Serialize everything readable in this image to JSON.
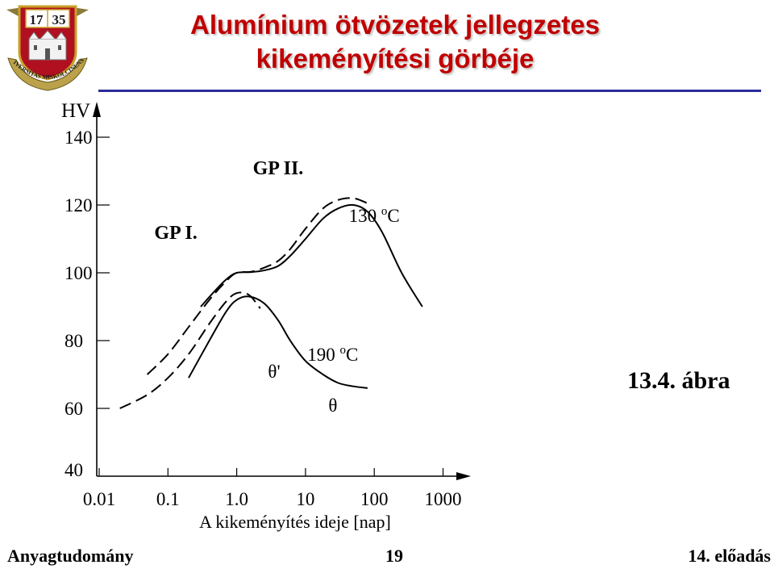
{
  "slide": {
    "title_line1": "Alumínium ötvözetek jellegzetes",
    "title_line2": "kikeményítési görbéje",
    "figure_label": "13.4. ábra",
    "footer_left": "Anyagtudomány",
    "footer_page": "19",
    "footer_right": "14. előadás"
  },
  "logo": {
    "year_left": "17",
    "year_right": "35",
    "ring_text": "UNIVERSITAS MISKOLCINENSIS",
    "colors": {
      "shield": "#b01020",
      "gold": "#c9a227"
    }
  },
  "chart_data": {
    "type": "line",
    "ylabel": "HV",
    "xlabel": "A kikeményítés ideje [nap]",
    "x_scale": "log",
    "xlim": [
      0.01,
      1000
    ],
    "ylim": [
      40,
      140
    ],
    "x_ticks": [
      0.01,
      0.1,
      1.0,
      10,
      100,
      1000
    ],
    "x_tick_labels": [
      "0.01",
      "0.1",
      "1.0",
      "10",
      "100",
      "1000"
    ],
    "y_ticks": [
      40,
      60,
      80,
      100,
      120,
      140
    ],
    "y_tick_labels": [
      "40",
      "60",
      "80",
      "100",
      "120",
      "140"
    ],
    "series": [
      {
        "name": "130 oC",
        "style": "solid",
        "x": [
          0.3,
          0.45,
          0.7,
          1.0,
          1.6,
          2.5,
          4,
          6,
          10,
          18,
          30,
          50,
          80,
          130,
          250,
          500
        ],
        "y": [
          90,
          94,
          98,
          100,
          100.2,
          100.7,
          102,
          105,
          110,
          116,
          119,
          120,
          118,
          112,
          100,
          90
        ]
      },
      {
        "name": "GP II.",
        "style": "dashed",
        "x": [
          0.05,
          0.1,
          0.2,
          0.4,
          0.7,
          1.0,
          1.6,
          2.5,
          4,
          6,
          10,
          18,
          30,
          50,
          80
        ],
        "y": [
          70,
          76,
          84,
          92,
          97.5,
          100,
          100.3,
          101.5,
          103.5,
          107,
          113,
          119,
          121.5,
          122,
          120.5
        ]
      },
      {
        "name": "190 oC",
        "style": "solid",
        "x": [
          0.2,
          0.4,
          0.7,
          1.0,
          1.5,
          2.5,
          4,
          6,
          10,
          18,
          30,
          50,
          80
        ],
        "y": [
          69,
          80,
          88.5,
          92,
          93,
          91,
          86,
          80,
          74,
          70,
          67.5,
          66.5,
          66
        ]
      },
      {
        "name": "GP I.",
        "style": "dashed",
        "x": [
          0.02,
          0.05,
          0.1,
          0.2,
          0.4,
          0.7,
          1.0,
          1.5,
          2.2
        ],
        "y": [
          60,
          64,
          69,
          76,
          85,
          91.5,
          94,
          93.5,
          89.5
        ]
      }
    ],
    "annotations": [
      {
        "text": "GP II.",
        "x": 4.0,
        "y": 129
      },
      {
        "text": "GP I.",
        "x": 0.13,
        "y": 110
      },
      {
        "text": "130 oC",
        "x": 100,
        "y": 115
      },
      {
        "text": "190 oC",
        "x": 25,
        "y": 74
      },
      {
        "text": "θ'",
        "x": 3.5,
        "y": 69
      },
      {
        "text": "θ",
        "x": 25,
        "y": 59
      }
    ]
  }
}
